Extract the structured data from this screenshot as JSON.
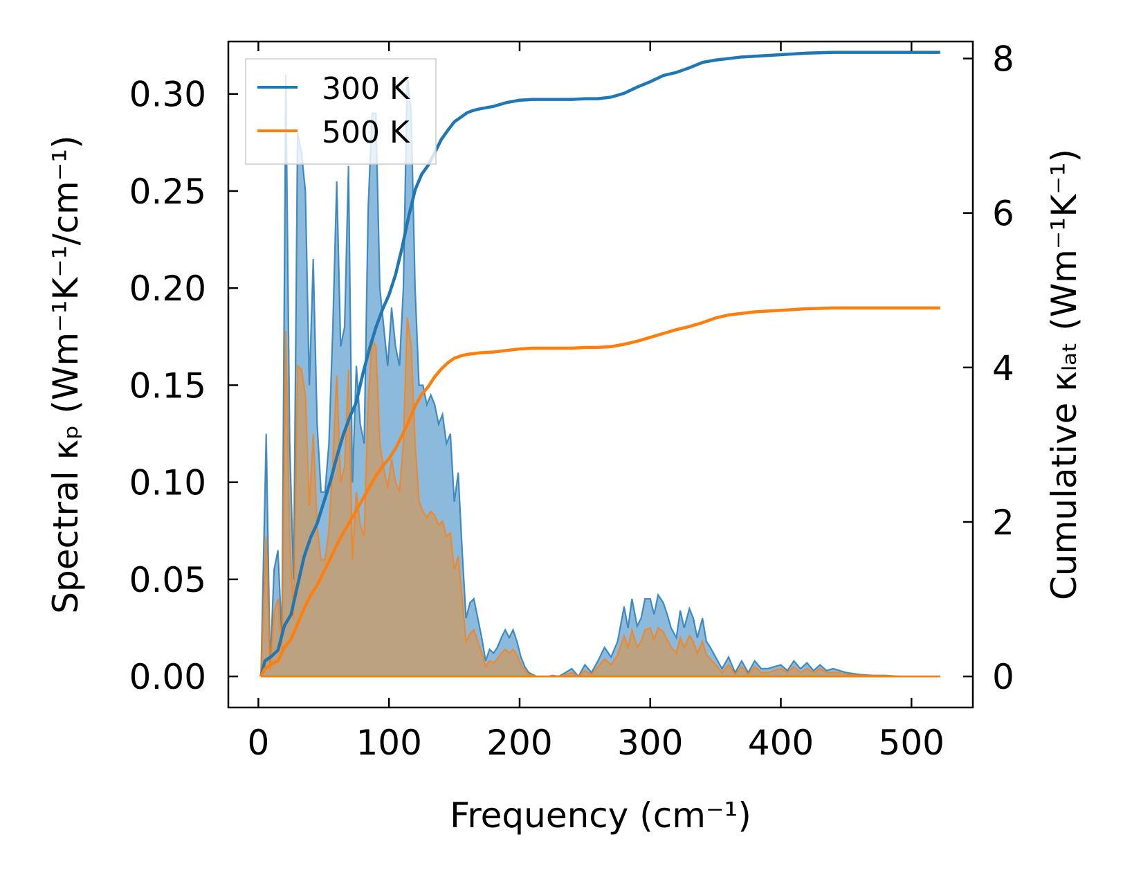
{
  "chart_data": {
    "type": "area",
    "title": "",
    "xlabel": "Frequency (cm⁻¹)",
    "ylabel_left": "Spectral κₚ (Wm⁻¹K⁻¹/cm⁻¹)",
    "ylabel_right": "Cumulative κₗₐₜ (Wm⁻¹K⁻¹)",
    "xlim": [
      -23,
      547
    ],
    "ylim_left": [
      -0.016,
      0.327
    ],
    "ylim_right": [
      -0.402,
      8.22
    ],
    "xticks": [
      0,
      100,
      200,
      300,
      400,
      500
    ],
    "xtick_labels": [
      "0",
      "100",
      "200",
      "300",
      "400",
      "500"
    ],
    "yticks_left": [
      0.0,
      0.05,
      0.1,
      0.15,
      0.2,
      0.25,
      0.3
    ],
    "ytick_labels_left": [
      "0.00",
      "0.05",
      "0.10",
      "0.15",
      "0.20",
      "0.25",
      "0.30"
    ],
    "yticks_right": [
      0,
      2,
      4,
      6,
      8
    ],
    "ytick_labels_right": [
      "0",
      "2",
      "4",
      "6",
      "8"
    ],
    "legend": {
      "position": "top-left",
      "entries": [
        "300 K",
        "500 K"
      ]
    },
    "series": [
      {
        "name": "300 K",
        "color": "#1f77b4",
        "fill_color": "#7fb2d9",
        "spectral": {
          "x": [
            2,
            6,
            9,
            12,
            15,
            18,
            21,
            24,
            27,
            30,
            33,
            36,
            39,
            42,
            45,
            48,
            51,
            54,
            57,
            60,
            63,
            66,
            69,
            72,
            75,
            78,
            81,
            84,
            87,
            90,
            93,
            96,
            99,
            102,
            105,
            108,
            111,
            114,
            117,
            120,
            123,
            126,
            129,
            132,
            135,
            138,
            141,
            144,
            147,
            150,
            153,
            156,
            159,
            162,
            165,
            168,
            171,
            174,
            177,
            180,
            183,
            186,
            189,
            192,
            195,
            198,
            201,
            204,
            207,
            210,
            213,
            216,
            219,
            222,
            225,
            230,
            235,
            240,
            245,
            250,
            255,
            260,
            265,
            270,
            275,
            280,
            283,
            286,
            290,
            293,
            296,
            300,
            303,
            306,
            310,
            313,
            316,
            320,
            323,
            326,
            330,
            333,
            336,
            340,
            343,
            346,
            350,
            355,
            360,
            365,
            370,
            375,
            380,
            385,
            390,
            395,
            400,
            405,
            410,
            415,
            420,
            425,
            430,
            435,
            440,
            445,
            450,
            460,
            470,
            480,
            490,
            500,
            510,
            522
          ],
          "y": [
            0.0,
            0.125,
            0.005,
            0.055,
            0.065,
            0.02,
            0.31,
            0.12,
            0.05,
            0.28,
            0.27,
            0.25,
            0.15,
            0.215,
            0.13,
            0.095,
            0.095,
            0.12,
            0.18,
            0.255,
            0.17,
            0.18,
            0.263,
            0.1,
            0.16,
            0.13,
            0.12,
            0.24,
            0.29,
            0.29,
            0.2,
            0.18,
            0.16,
            0.19,
            0.17,
            0.16,
            0.2,
            0.31,
            0.29,
            0.2,
            0.15,
            0.15,
            0.14,
            0.145,
            0.14,
            0.13,
            0.135,
            0.12,
            0.125,
            0.09,
            0.105,
            0.065,
            0.03,
            0.038,
            0.04,
            0.03,
            0.02,
            0.008,
            0.014,
            0.012,
            0.015,
            0.02,
            0.024,
            0.02,
            0.024,
            0.018,
            0.01,
            0.005,
            0.002,
            0.001,
            0.0,
            0.0,
            0.0,
            0.0,
            0.0005,
            0.0,
            0.002,
            0.004,
            0.0,
            0.006,
            0.002,
            0.008,
            0.015,
            0.01,
            0.018,
            0.036,
            0.025,
            0.04,
            0.026,
            0.03,
            0.04,
            0.04,
            0.032,
            0.042,
            0.038,
            0.032,
            0.025,
            0.02,
            0.034,
            0.025,
            0.035,
            0.03,
            0.02,
            0.03,
            0.018,
            0.015,
            0.01,
            0.004,
            0.01,
            0.002,
            0.008,
            0.002,
            0.008,
            0.004,
            0.004,
            0.005,
            0.006,
            0.003,
            0.008,
            0.004,
            0.007,
            0.003,
            0.006,
            0.003,
            0.004,
            0.003,
            0.002,
            0.001,
            0.0005,
            0.0005,
            0.0,
            0.0,
            0.0,
            0.0
          ]
        },
        "cumulative": {
          "x": [
            2,
            5,
            10,
            15,
            20,
            25,
            30,
            35,
            40,
            45,
            50,
            55,
            60,
            65,
            70,
            75,
            80,
            85,
            90,
            95,
            100,
            105,
            110,
            115,
            120,
            125,
            130,
            135,
            140,
            145,
            150,
            155,
            160,
            165,
            170,
            180,
            190,
            200,
            210,
            220,
            230,
            240,
            250,
            260,
            270,
            280,
            290,
            300,
            310,
            320,
            330,
            340,
            350,
            360,
            370,
            380,
            390,
            400,
            420,
            440,
            460,
            480,
            500,
            522
          ],
          "y": [
            0.0,
            0.2,
            0.26,
            0.34,
            0.66,
            0.8,
            1.18,
            1.55,
            1.8,
            1.98,
            2.25,
            2.52,
            2.84,
            3.13,
            3.36,
            3.55,
            3.92,
            4.24,
            4.52,
            4.75,
            4.94,
            5.2,
            5.55,
            5.95,
            6.3,
            6.5,
            6.62,
            6.78,
            6.95,
            7.07,
            7.18,
            7.24,
            7.3,
            7.33,
            7.35,
            7.38,
            7.43,
            7.46,
            7.47,
            7.47,
            7.47,
            7.47,
            7.48,
            7.48,
            7.5,
            7.55,
            7.63,
            7.7,
            7.78,
            7.82,
            7.88,
            7.95,
            7.98,
            8.0,
            8.02,
            8.03,
            8.04,
            8.05,
            8.07,
            8.08,
            8.08,
            8.08,
            8.08,
            8.08
          ]
        }
      },
      {
        "name": "500 K",
        "color": "#ff7f0e",
        "fill_color": "#c59d71",
        "spectral": {
          "x": [
            2,
            6,
            9,
            12,
            15,
            18,
            21,
            24,
            27,
            30,
            33,
            36,
            39,
            42,
            45,
            48,
            51,
            54,
            57,
            60,
            63,
            66,
            69,
            72,
            75,
            78,
            81,
            84,
            87,
            90,
            93,
            96,
            99,
            102,
            105,
            108,
            111,
            114,
            117,
            120,
            123,
            126,
            129,
            132,
            135,
            138,
            141,
            144,
            147,
            150,
            153,
            156,
            159,
            162,
            165,
            168,
            171,
            174,
            177,
            180,
            183,
            186,
            189,
            192,
            195,
            198,
            201,
            204,
            207,
            210,
            213,
            216,
            219,
            222,
            225,
            230,
            235,
            240,
            245,
            250,
            255,
            260,
            265,
            270,
            275,
            280,
            283,
            286,
            290,
            293,
            296,
            300,
            303,
            306,
            310,
            313,
            316,
            320,
            323,
            326,
            330,
            333,
            336,
            340,
            343,
            346,
            350,
            355,
            360,
            365,
            370,
            375,
            380,
            385,
            390,
            395,
            400,
            405,
            410,
            415,
            420,
            425,
            430,
            435,
            440,
            445,
            450,
            460,
            470,
            480,
            490,
            500,
            510,
            522
          ],
          "y": [
            0.0,
            0.072,
            0.003,
            0.033,
            0.04,
            0.013,
            0.178,
            0.07,
            0.03,
            0.16,
            0.158,
            0.145,
            0.088,
            0.125,
            0.077,
            0.06,
            0.06,
            0.075,
            0.11,
            0.155,
            0.1,
            0.108,
            0.158,
            0.06,
            0.095,
            0.078,
            0.072,
            0.14,
            0.173,
            0.17,
            0.12,
            0.107,
            0.097,
            0.112,
            0.1,
            0.095,
            0.12,
            0.185,
            0.17,
            0.12,
            0.09,
            0.085,
            0.082,
            0.085,
            0.083,
            0.078,
            0.08,
            0.072,
            0.074,
            0.055,
            0.062,
            0.04,
            0.018,
            0.022,
            0.024,
            0.018,
            0.012,
            0.005,
            0.008,
            0.007,
            0.009,
            0.012,
            0.014,
            0.012,
            0.014,
            0.011,
            0.006,
            0.003,
            0.001,
            0.0005,
            0.0,
            0.0,
            0.0,
            0.0,
            0.0003,
            0.0,
            0.001,
            0.002,
            0.0,
            0.003,
            0.001,
            0.005,
            0.009,
            0.006,
            0.011,
            0.021,
            0.015,
            0.024,
            0.015,
            0.018,
            0.024,
            0.025,
            0.019,
            0.025,
            0.023,
            0.019,
            0.015,
            0.012,
            0.02,
            0.015,
            0.021,
            0.018,
            0.012,
            0.018,
            0.011,
            0.009,
            0.006,
            0.002,
            0.006,
            0.001,
            0.005,
            0.001,
            0.005,
            0.002,
            0.002,
            0.003,
            0.004,
            0.002,
            0.005,
            0.002,
            0.004,
            0.002,
            0.004,
            0.002,
            0.002,
            0.002,
            0.001,
            0.0005,
            0.0003,
            0.0003,
            0.0,
            0.0,
            0.0,
            0.0
          ]
        },
        "cumulative": {
          "x": [
            2,
            5,
            10,
            15,
            20,
            25,
            30,
            35,
            40,
            45,
            50,
            55,
            60,
            65,
            70,
            75,
            80,
            85,
            90,
            95,
            100,
            105,
            110,
            115,
            120,
            125,
            130,
            135,
            140,
            145,
            150,
            155,
            160,
            165,
            170,
            180,
            190,
            200,
            210,
            220,
            230,
            240,
            250,
            260,
            270,
            280,
            290,
            300,
            310,
            320,
            330,
            340,
            350,
            360,
            370,
            380,
            390,
            400,
            420,
            440,
            460,
            480,
            500,
            522
          ],
          "y": [
            0.0,
            0.1,
            0.16,
            0.2,
            0.38,
            0.48,
            0.68,
            0.88,
            1.05,
            1.18,
            1.35,
            1.52,
            1.7,
            1.86,
            2.0,
            2.15,
            2.3,
            2.45,
            2.6,
            2.72,
            2.82,
            2.95,
            3.12,
            3.3,
            3.5,
            3.65,
            3.75,
            3.88,
            3.98,
            4.06,
            4.12,
            4.15,
            4.17,
            4.18,
            4.19,
            4.2,
            4.22,
            4.24,
            4.25,
            4.25,
            4.25,
            4.25,
            4.26,
            4.26,
            4.27,
            4.3,
            4.34,
            4.39,
            4.44,
            4.49,
            4.53,
            4.58,
            4.64,
            4.68,
            4.7,
            4.72,
            4.73,
            4.74,
            4.76,
            4.77,
            4.77,
            4.77,
            4.77,
            4.77
          ]
        }
      }
    ]
  }
}
